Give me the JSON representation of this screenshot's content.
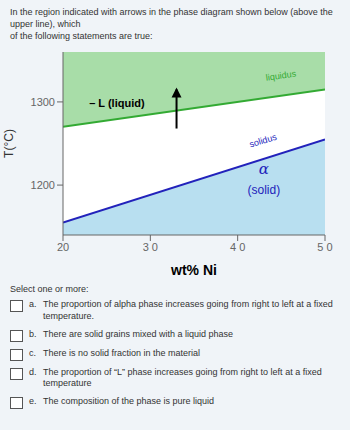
{
  "chart_data": {
    "type": "line",
    "title": "In the region indicated with arrows in the phase diagram shown below (above the upper line), which\nof the following statements are true:",
    "xlabel": "wt% Ni",
    "ylabel": "T(°C)",
    "xlim": [
      20,
      50
    ],
    "ylim": [
      1140,
      1360
    ],
    "xticks": [
      20,
      {
        "value": 30,
        "label": "3 0"
      },
      {
        "value": 40,
        "label": "4 0"
      },
      {
        "value": 50,
        "label": "5 0"
      }
    ],
    "yticks": [
      1200,
      1300
    ],
    "series": [
      {
        "color": "#33aa33",
        "x": [
          20,
          50
        ],
        "values": [
          1270,
          1315
        ]
      },
      {
        "color": "#2222bb",
        "x": [
          20,
          50
        ],
        "values": [
          1155,
          1255
        ]
      }
    ],
    "regions": [
      {
        "color": "#a8dda8"
      },
      {
        "color": "#ffffff"
      },
      {
        "color": "#b8dff0"
      }
    ],
    "annotations": [
      {
        "text": "– L (liquid)",
        "x": 23,
        "y": 1297,
        "color": "#000000"
      },
      {
        "text": "liquidus",
        "x": 45,
        "y": 1328,
        "color": "#33aa33"
      },
      {
        "text": "solidus",
        "x": 43,
        "y": 1250,
        "color": "#2222bb"
      },
      {
        "text": "α",
        "x": 43,
        "y": 1218,
        "color": "#2222bb"
      },
      {
        "text": "(solid)",
        "x": 43,
        "y": 1200,
        "color": "#2222bb"
      }
    ],
    "arrows": [
      {
        "x": 33,
        "y_start": 1268,
        "y_end": 1315
      }
    ],
    "select_text": "Select one or more:",
    "options": [
      {
        "letter": "a.",
        "text": "The proportion of alpha phase increases going from right to left at a fixed temperature."
      },
      {
        "letter": "b.",
        "text": "There are solid grains mixed with a liquid phase"
      },
      {
        "letter": "c.",
        "text": "There is no solid fraction in the material"
      },
      {
        "letter": "d.",
        "text": "The proportion of “L” phase increases going from right to left at a fixed temperature"
      },
      {
        "letter": "e.",
        "text": "The composition of the phase is pure liquid"
      }
    ]
  }
}
